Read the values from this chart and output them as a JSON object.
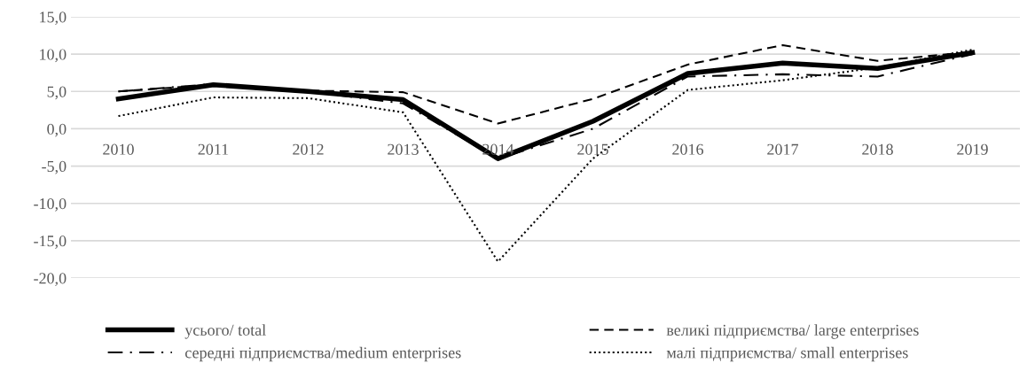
{
  "chart_data": {
    "type": "line",
    "categories": [
      "2010",
      "2011",
      "2012",
      "2013",
      "2014",
      "2015",
      "2016",
      "2017",
      "2018",
      "2019"
    ],
    "series": [
      {
        "name": "усього/ total",
        "color": "#000000",
        "line_style": "solid",
        "values": [
          4.0,
          5.9,
          5.0,
          3.9,
          -4.0,
          1.0,
          7.4,
          8.8,
          8.1,
          10.2
        ]
      },
      {
        "name": "великі підприємства/ large enterprises",
        "color": "#000000",
        "line_style": "dashed",
        "values": [
          5.0,
          5.9,
          5.1,
          4.9,
          0.7,
          4.0,
          8.6,
          11.2,
          9.1,
          10.3
        ]
      },
      {
        "name": "середні підприємства/medium enterprises",
        "color": "#000000",
        "line_style": "dashdot",
        "values": [
          5.0,
          6.0,
          5.0,
          3.4,
          -4.0,
          0.0,
          7.0,
          7.3,
          7.0,
          10.0
        ]
      },
      {
        "name": "малі підприємства/ small enterprises",
        "color": "#000000",
        "line_style": "dotted",
        "values": [
          1.7,
          4.2,
          4.1,
          2.2,
          -17.8,
          -4.0,
          5.2,
          6.5,
          8.2,
          10.6
        ]
      }
    ],
    "ylim": [
      -20,
      15
    ],
    "yticks": [
      {
        "value": -20,
        "label": "-20,0"
      },
      {
        "value": -15,
        "label": "-15,0"
      },
      {
        "value": -10,
        "label": "-10,0"
      },
      {
        "value": -5,
        "label": "-5,0"
      },
      {
        "value": 0,
        "label": "0,0"
      },
      {
        "value": 5,
        "label": "5,0"
      },
      {
        "value": 10,
        "label": "10,0"
      },
      {
        "value": 15,
        "label": "15,0"
      }
    ],
    "grid": "y",
    "legend": "bottom",
    "marker": "none"
  }
}
